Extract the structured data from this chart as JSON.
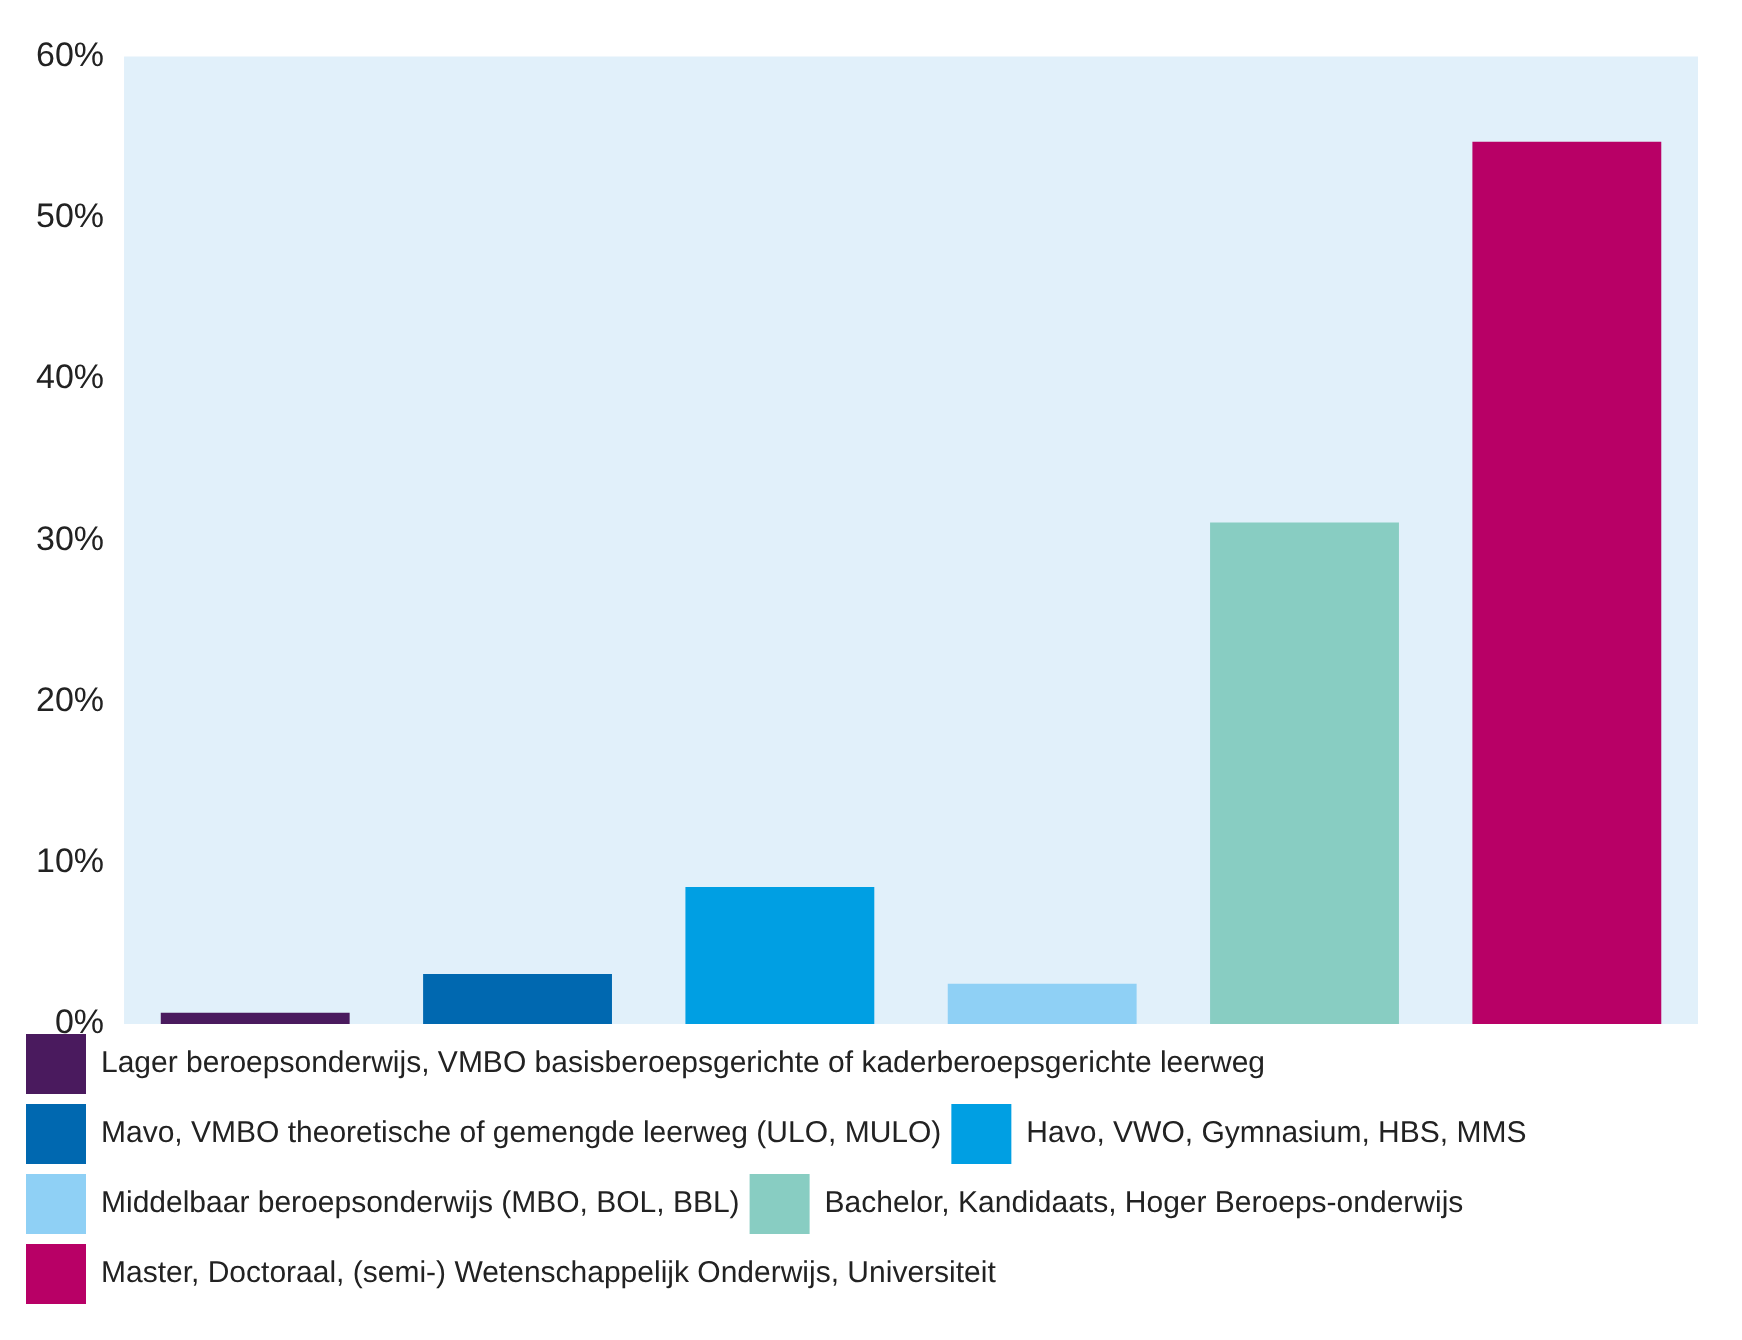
{
  "chart_data": {
    "type": "bar",
    "categories": [
      null,
      null,
      null,
      null,
      null,
      null
    ],
    "stacked": true,
    "series": [
      {
        "name": "Lager beroepsonderwijs, VMBO basisberoepsgerichte of kaderberoepsgerichte leerweg",
        "color": "#4a1a5e",
        "values": [
          0.7,
          null,
          null,
          null,
          null,
          null
        ]
      },
      {
        "name": "Mavo, VMBO theoretische of gemengde leerweg (ULO, MULO)",
        "color": "#0068b0",
        "values": [
          null,
          3.1,
          null,
          null,
          null,
          null
        ]
      },
      {
        "name": "Havo, VWO, Gymnasium, HBS, MMS",
        "color": "#009fe3",
        "values": [
          null,
          null,
          8.5,
          null,
          null,
          null
        ]
      },
      {
        "name": "Middelbaar beroepsonderwijs (MBO, BOL, BBL)",
        "color": "#8fd0f5",
        "values": [
          null,
          null,
          null,
          2.5,
          null,
          null
        ]
      },
      {
        "name": "Bachelor, Kandidaats, Hoger Beroeps-onderwijs",
        "color": "#88cdc2",
        "values": [
          null,
          null,
          null,
          null,
          31.1,
          null
        ]
      },
      {
        "name": "Master, Doctoraal, (semi-) Wetenschappelijk Onderwijs, Universiteit",
        "color": "#b80066",
        "values": [
          null,
          null,
          null,
          null,
          null,
          54.7
        ]
      }
    ],
    "ylim": [
      0,
      60
    ],
    "yticks": [
      {
        "value": 0,
        "label": "0%"
      },
      {
        "value": 10,
        "label": "10%"
      },
      {
        "value": 20,
        "label": "20%"
      },
      {
        "value": 30,
        "label": "30%"
      },
      {
        "value": 40,
        "label": "40%"
      },
      {
        "value": 50,
        "label": "50%"
      },
      {
        "value": 60,
        "label": "60%"
      }
    ],
    "grid": false,
    "legend": "bottom",
    "tick_labels": "y"
  }
}
